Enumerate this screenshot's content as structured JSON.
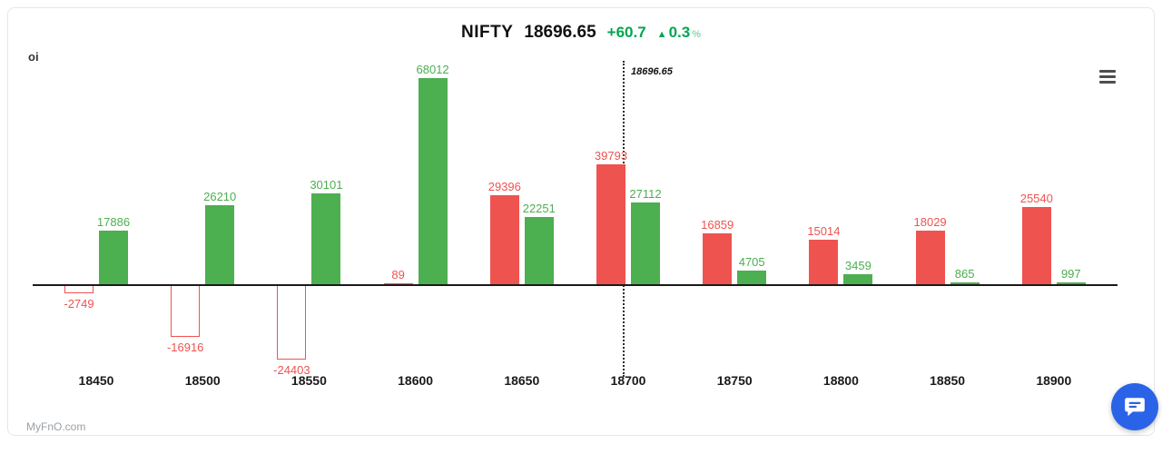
{
  "header": {
    "symbol": "NIFTY",
    "price": "18696.65",
    "change": "+60.7",
    "arrow": "▲",
    "change_pct": "0.3",
    "pct_symbol": "%"
  },
  "chart": {
    "axis_label": "oi",
    "spot_label": "18696.65"
  },
  "footer": {
    "watermark": "MyFnO.com"
  },
  "icons": {
    "menu": "hamburger-icon",
    "chat": "chat-bubble-icon"
  },
  "colors": {
    "green_bar": "#4caf50",
    "red_bar": "#ef5350",
    "title_green": "#00a651",
    "axis": "#1a1a1a",
    "chat_blue": "#2b63e8"
  },
  "chart_data": {
    "type": "bar",
    "title": "NIFTY 18696.65 +60.7 ▲ 0.3%",
    "ylabel": "oi",
    "xlabel": "",
    "grid": false,
    "legend": "none",
    "ylim": [
      -30000,
      72000
    ],
    "categories": [
      "18450",
      "18500",
      "18550",
      "18600",
      "18650",
      "18700",
      "18750",
      "18800",
      "18850",
      "18900"
    ],
    "series": [
      {
        "name": "red",
        "color": "#ef5350",
        "negative_style": "outline",
        "values": [
          -2749,
          -16916,
          -24403,
          89,
          29396,
          39793,
          16859,
          15014,
          18029,
          25540
        ]
      },
      {
        "name": "green",
        "color": "#4caf50",
        "values": [
          17886,
          26210,
          30101,
          68012,
          22251,
          27112,
          4705,
          3459,
          865,
          997
        ]
      }
    ],
    "spot_line": {
      "value": 18696.65,
      "label": "18696.65",
      "at_category_index": 5
    }
  }
}
